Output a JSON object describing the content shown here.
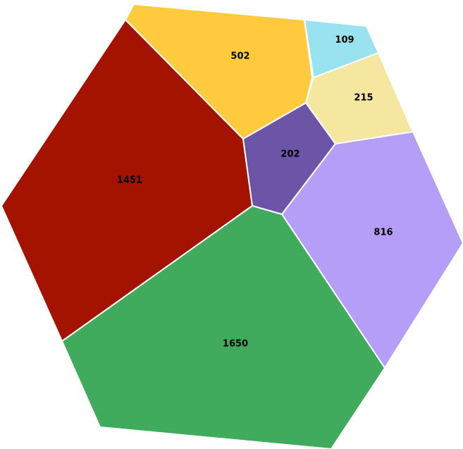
{
  "chart_data": {
    "type": "voronoi",
    "values": [
      1451,
      502,
      109,
      215,
      202,
      816,
      1650
    ],
    "colors": [
      "#a31300",
      "#ffca3e",
      "#98e3ef",
      "#f5e6a0",
      "#6c55a6",
      "#b49ef7",
      "#41ab5d"
    ]
  }
}
